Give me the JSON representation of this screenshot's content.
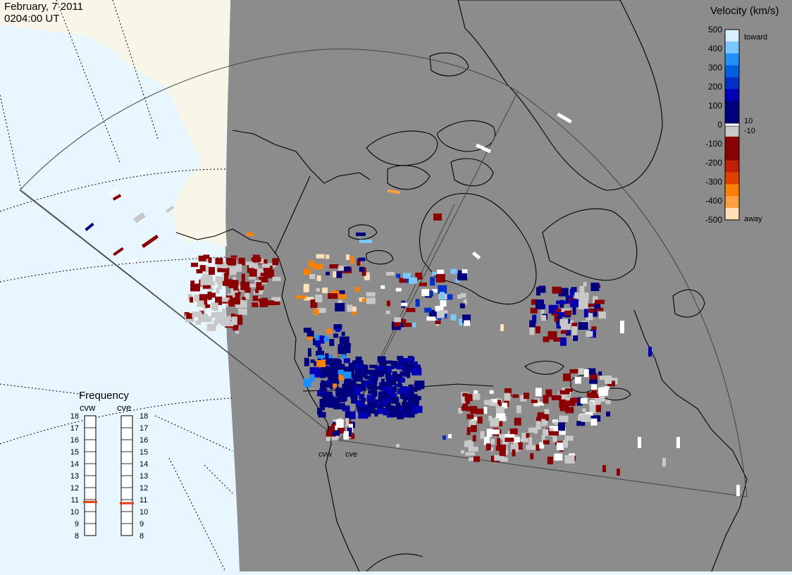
{
  "header": {
    "date": "February, 7 2011",
    "time": "0204:00 UT"
  },
  "velocity_scale": {
    "title": "Velocity (km/s)",
    "ticks": [
      {
        "label": "500",
        "value": 500
      },
      {
        "label": "400",
        "value": 400
      },
      {
        "label": "300",
        "value": 300
      },
      {
        "label": "200",
        "value": 200
      },
      {
        "label": "100",
        "value": 100
      },
      {
        "label": "0",
        "value": 0
      },
      {
        "label": "-100",
        "value": -100
      },
      {
        "label": "-200",
        "value": -200
      },
      {
        "label": "-300",
        "value": -300
      },
      {
        "label": "-400",
        "value": -400
      },
      {
        "label": "-500",
        "value": -500
      }
    ],
    "pos_threshold": "10",
    "neg_threshold": "-10",
    "toward_label": "toward",
    "away_label": "away",
    "colors": [
      "#ffe1b8",
      "#ffa040",
      "#ff7f00",
      "#e04000",
      "#c02000",
      "#8b0000",
      "#8b0000",
      "#c8c8c8",
      "#00007f",
      "#00007f",
      "#0000b4",
      "#0030c8",
      "#0060e0",
      "#2090ff",
      "#7ac8ff",
      "#d8f0ff"
    ]
  },
  "frequency": {
    "title": "Frequency",
    "radars": [
      {
        "name": "cvw",
        "freq_mhz": 10.8
      },
      {
        "name": "cve",
        "freq_mhz": 10.7
      }
    ],
    "ticks": [
      "18",
      "17",
      "16",
      "15",
      "14",
      "13",
      "12",
      "11",
      "10",
      "9",
      "8"
    ],
    "range_mhz": [
      8,
      18
    ],
    "marker_color": "#e04010"
  },
  "map": {
    "colors": {
      "ocean_day": "#e8f6ff",
      "night": "#8c8c8c",
      "land_day": "#f8f6e8",
      "coast": "#000000"
    },
    "station_labels": [
      "cvw",
      "cve"
    ]
  }
}
